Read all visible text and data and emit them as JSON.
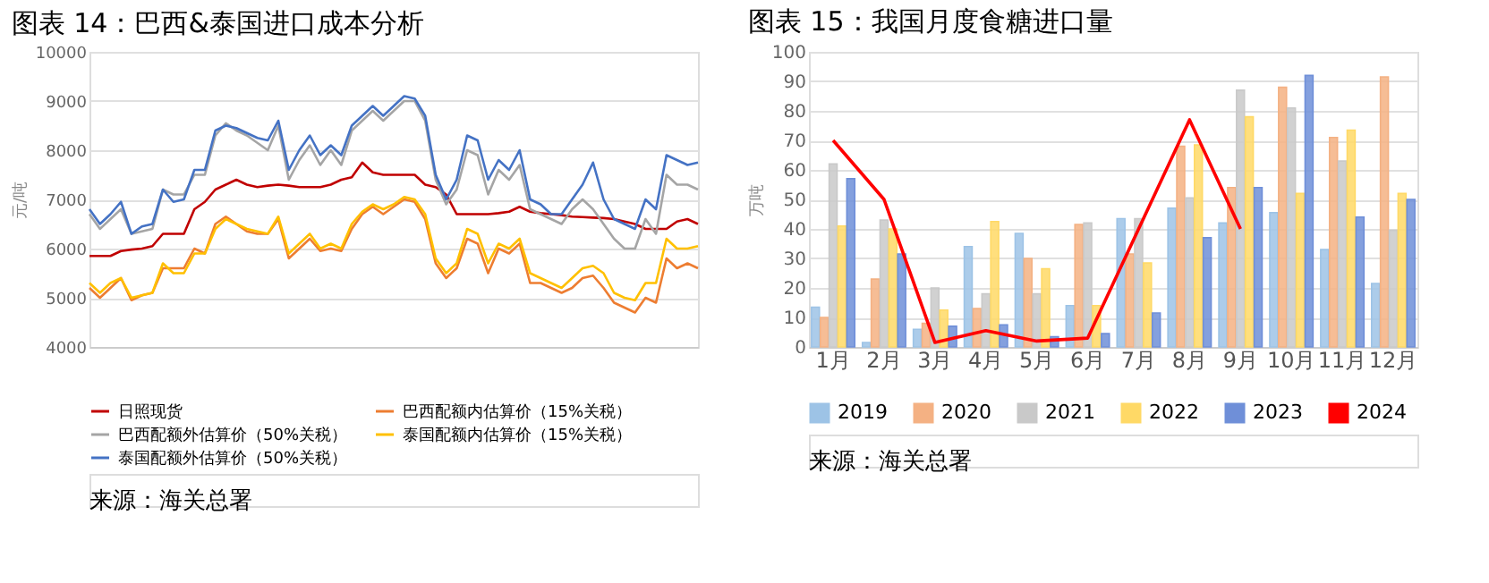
{
  "chart_data": [
    {
      "type": "line",
      "title": "图表 14：巴西&泰国进口成本分析",
      "ylabel": "元/吨",
      "categories": [
        null,
        null,
        null,
        null,
        null,
        null,
        null,
        null,
        null,
        null,
        null,
        null,
        null,
        null,
        null,
        null,
        null,
        null,
        null,
        null,
        null,
        null,
        null,
        null,
        null,
        null,
        null,
        null,
        null,
        null,
        null,
        null,
        null,
        null,
        null,
        null,
        null,
        null,
        null,
        null,
        null,
        null,
        null,
        null,
        null,
        null,
        null,
        null,
        null,
        null,
        null,
        null,
        null,
        null,
        null,
        null,
        null,
        null,
        null
      ],
      "series": [
        {
          "name": "日照现货",
          "color": "#c00000",
          "values": [
            5850,
            5850,
            5850,
            5950,
            5980,
            6000,
            6050,
            6300,
            6300,
            6300,
            6800,
            6950,
            7200,
            7300,
            7400,
            7300,
            7250,
            7280,
            7300,
            7280,
            7250,
            7250,
            7250,
            7300,
            7400,
            7450,
            7750,
            7550,
            7500,
            7500,
            7500,
            7500,
            7300,
            7250,
            7100,
            6700,
            6700,
            6700,
            6700,
            6720,
            6750,
            6850,
            6750,
            6720,
            6700,
            6680,
            6650,
            6640,
            6630,
            6620,
            6600,
            6550,
            6500,
            6400,
            6400,
            6400,
            6550,
            6600,
            6500
          ]
        },
        {
          "name": "巴西配额内估算价（15%关税）",
          "color": "#ed7d31",
          "values": [
            5200,
            5000,
            5200,
            5400,
            4950,
            5050,
            5100,
            5600,
            5600,
            5600,
            6000,
            5900,
            6500,
            6650,
            6500,
            6350,
            6300,
            6300,
            6600,
            5800,
            6000,
            6200,
            5950,
            6000,
            5950,
            6400,
            6700,
            6850,
            6700,
            6850,
            7000,
            6950,
            6600,
            5700,
            5400,
            5600,
            6200,
            6100,
            5500,
            6000,
            5900,
            6100,
            5300,
            5300,
            5200,
            5100,
            5200,
            5400,
            5450,
            5200,
            4900,
            4800,
            4700,
            5000,
            4900,
            5800,
            5600,
            5700,
            5600
          ]
        },
        {
          "name": "巴西配额外估算价（50%关税）",
          "color": "#a5a5a5",
          "values": [
            6700,
            6400,
            6600,
            6800,
            6300,
            6350,
            6400,
            7200,
            7100,
            7100,
            7500,
            7500,
            8300,
            8550,
            8400,
            8300,
            8150,
            8000,
            8500,
            7400,
            7800,
            8100,
            7700,
            8000,
            7700,
            8400,
            8600,
            8800,
            8600,
            8800,
            9000,
            9000,
            8600,
            7400,
            6900,
            7200,
            8000,
            7900,
            7100,
            7600,
            7400,
            7700,
            6800,
            6700,
            6600,
            6500,
            6800,
            7000,
            6800,
            6500,
            6200,
            6000,
            6000,
            6600,
            6300,
            7500,
            7300,
            7300,
            7200
          ]
        },
        {
          "name": "泰国配额内估算价（15%关税）",
          "color": "#ffc000",
          "values": [
            5300,
            5100,
            5300,
            5400,
            5000,
            5050,
            5100,
            5700,
            5500,
            5500,
            5900,
            5900,
            6400,
            6600,
            6500,
            6400,
            6350,
            6300,
            6650,
            5900,
            6100,
            6300,
            6000,
            6100,
            6000,
            6500,
            6750,
            6900,
            6800,
            6900,
            7050,
            7000,
            6700,
            5800,
            5500,
            5700,
            6400,
            6300,
            5700,
            6100,
            6000,
            6200,
            5500,
            5400,
            5300,
            5200,
            5400,
            5600,
            5650,
            5500,
            5100,
            5000,
            4950,
            5300,
            5300,
            6200,
            6000,
            6000,
            6050
          ]
        },
        {
          "name": "泰国配额外估算价（50%关税）",
          "color": "#4472c4",
          "values": [
            6800,
            6500,
            6700,
            6950,
            6300,
            6450,
            6500,
            7200,
            6950,
            7000,
            7600,
            7600,
            8400,
            8500,
            8450,
            8350,
            8250,
            8200,
            8600,
            7600,
            8000,
            8300,
            7900,
            8100,
            7900,
            8500,
            8700,
            8900,
            8700,
            8900,
            9100,
            9050,
            8700,
            7500,
            7000,
            7400,
            8300,
            8200,
            7400,
            7800,
            7600,
            8000,
            7000,
            6900,
            6700,
            6700,
            7000,
            7300,
            7750,
            7000,
            6600,
            6500,
            6400,
            7000,
            6800,
            7900,
            7800,
            7700,
            7750
          ]
        }
      ],
      "ylim": [
        4000,
        10000
      ],
      "yticks": [
        4000,
        5000,
        6000,
        7000,
        8000,
        9000,
        10000
      ],
      "grid": "y",
      "legend": "bottom",
      "annotations": [
        "来源：海关总署"
      ]
    },
    {
      "type": "bar",
      "title": "图表 15：我国月度食糖进口量",
      "ylabel": "万吨",
      "categories": [
        "1月",
        "2月",
        "3月",
        "4月",
        "5月",
        "6月",
        "7月",
        "8月",
        "9月",
        "10月",
        "11月",
        "12月"
      ],
      "series": [
        {
          "name": "2019",
          "color": "#9dc3e6",
          "values": [
            13.5,
            1.5,
            6,
            34,
            38.5,
            14,
            43.5,
            47,
            42,
            45.5,
            33,
            21.5
          ]
        },
        {
          "name": "2020",
          "color": "#f4b183",
          "values": [
            10,
            23,
            8,
            13,
            30,
            41.5,
            31.5,
            68,
            54,
            88,
            71,
            91.5
          ]
        },
        {
          "name": "2021",
          "color": "#c9c9c9",
          "values": [
            62,
            43,
            20,
            18,
            18,
            42,
            43.5,
            50.5,
            87,
            81,
            63,
            39.5
          ]
        },
        {
          "name": "2022",
          "color": "#ffd966",
          "values": [
            41,
            40,
            12.5,
            42.5,
            26.5,
            14,
            28.5,
            68.5,
            78,
            52,
            73.5,
            52
          ]
        },
        {
          "name": "2023",
          "color": "#6f8fd8",
          "values": [
            57,
            31.5,
            7,
            7.5,
            3.5,
            4.5,
            11.5,
            37,
            54,
            92,
            44,
            50
          ]
        },
        {
          "name": "2024",
          "color": "#ff0000",
          "type": "line",
          "values": [
            70,
            50,
            1.5,
            5.5,
            2,
            3,
            40,
            77,
            40,
            null,
            null,
            null
          ]
        }
      ],
      "ylim": [
        0,
        100
      ],
      "yticks": [
        0,
        10,
        20,
        30,
        40,
        50,
        60,
        70,
        80,
        90,
        100
      ],
      "grid": "y",
      "legend": "bottom",
      "annotations": [
        "来源：海关总署"
      ]
    }
  ]
}
